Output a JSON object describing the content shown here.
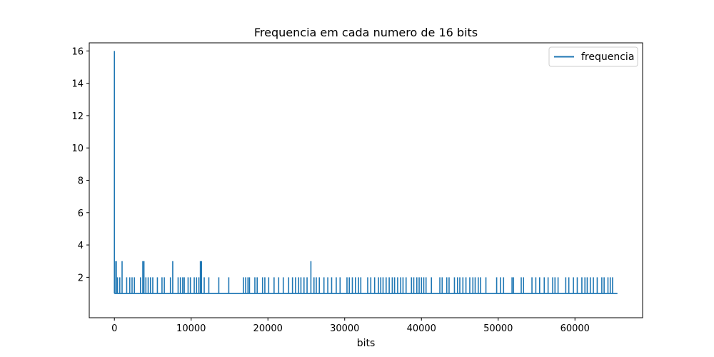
{
  "chart_data": {
    "type": "line",
    "title": "Frequencia em cada numero de 16 bits",
    "xlabel": "bits",
    "ylabel": "",
    "xlim": [
      -3277,
      68813
    ],
    "ylim": [
      -0.5,
      16.5
    ],
    "xticks": [
      0,
      10000,
      20000,
      30000,
      40000,
      50000,
      60000
    ],
    "yticks": [
      2,
      4,
      6,
      8,
      10,
      12,
      14,
      16
    ],
    "grid": false,
    "legend_position": "top-right",
    "baseline": 1,
    "x_max": 65535,
    "series": [
      {
        "name": "frequencia",
        "color": "#1f77b4",
        "spikes": [
          {
            "x": 0,
            "y": 16
          },
          {
            "x": 60,
            "y": 3
          },
          {
            "x": 250,
            "y": 3
          },
          {
            "x": 400,
            "y": 2
          },
          {
            "x": 700,
            "y": 2
          },
          {
            "x": 1000,
            "y": 3
          },
          {
            "x": 1600,
            "y": 2
          },
          {
            "x": 2000,
            "y": 2
          },
          {
            "x": 2300,
            "y": 2
          },
          {
            "x": 2600,
            "y": 2
          },
          {
            "x": 3400,
            "y": 2
          },
          {
            "x": 3700,
            "y": 3
          },
          {
            "x": 3850,
            "y": 3
          },
          {
            "x": 4100,
            "y": 2
          },
          {
            "x": 4400,
            "y": 2
          },
          {
            "x": 4700,
            "y": 2
          },
          {
            "x": 5000,
            "y": 2
          },
          {
            "x": 5600,
            "y": 2
          },
          {
            "x": 6200,
            "y": 2
          },
          {
            "x": 6500,
            "y": 2
          },
          {
            "x": 7300,
            "y": 2
          },
          {
            "x": 7600,
            "y": 3
          },
          {
            "x": 8300,
            "y": 2
          },
          {
            "x": 8600,
            "y": 2
          },
          {
            "x": 8900,
            "y": 2
          },
          {
            "x": 9100,
            "y": 2
          },
          {
            "x": 9600,
            "y": 2
          },
          {
            "x": 9900,
            "y": 2
          },
          {
            "x": 10400,
            "y": 2
          },
          {
            "x": 10700,
            "y": 2
          },
          {
            "x": 11000,
            "y": 2
          },
          {
            "x": 11200,
            "y": 3
          },
          {
            "x": 11350,
            "y": 3
          },
          {
            "x": 11700,
            "y": 2
          },
          {
            "x": 12300,
            "y": 2
          },
          {
            "x": 13600,
            "y": 2
          },
          {
            "x": 14900,
            "y": 2
          },
          {
            "x": 16800,
            "y": 2
          },
          {
            "x": 17100,
            "y": 2
          },
          {
            "x": 17400,
            "y": 2
          },
          {
            "x": 17600,
            "y": 2
          },
          {
            "x": 18300,
            "y": 2
          },
          {
            "x": 18600,
            "y": 2
          },
          {
            "x": 19300,
            "y": 2
          },
          {
            "x": 19600,
            "y": 2
          },
          {
            "x": 20100,
            "y": 2
          },
          {
            "x": 20800,
            "y": 2
          },
          {
            "x": 21400,
            "y": 2
          },
          {
            "x": 22000,
            "y": 2
          },
          {
            "x": 22700,
            "y": 2
          },
          {
            "x": 23200,
            "y": 2
          },
          {
            "x": 23600,
            "y": 2
          },
          {
            "x": 24000,
            "y": 2
          },
          {
            "x": 24300,
            "y": 2
          },
          {
            "x": 24700,
            "y": 2
          },
          {
            "x": 25100,
            "y": 2
          },
          {
            "x": 25600,
            "y": 3
          },
          {
            "x": 26000,
            "y": 2
          },
          {
            "x": 26300,
            "y": 2
          },
          {
            "x": 26700,
            "y": 2
          },
          {
            "x": 27300,
            "y": 2
          },
          {
            "x": 27800,
            "y": 2
          },
          {
            "x": 28300,
            "y": 2
          },
          {
            "x": 28900,
            "y": 2
          },
          {
            "x": 29400,
            "y": 2
          },
          {
            "x": 30300,
            "y": 2
          },
          {
            "x": 30600,
            "y": 2
          },
          {
            "x": 31000,
            "y": 2
          },
          {
            "x": 31400,
            "y": 2
          },
          {
            "x": 31800,
            "y": 2
          },
          {
            "x": 32100,
            "y": 2
          },
          {
            "x": 33000,
            "y": 2
          },
          {
            "x": 33400,
            "y": 2
          },
          {
            "x": 33900,
            "y": 2
          },
          {
            "x": 34400,
            "y": 2
          },
          {
            "x": 34700,
            "y": 2
          },
          {
            "x": 35000,
            "y": 2
          },
          {
            "x": 35400,
            "y": 2
          },
          {
            "x": 35800,
            "y": 2
          },
          {
            "x": 36200,
            "y": 2
          },
          {
            "x": 36500,
            "y": 2
          },
          {
            "x": 36900,
            "y": 2
          },
          {
            "x": 37300,
            "y": 2
          },
          {
            "x": 37600,
            "y": 2
          },
          {
            "x": 38000,
            "y": 2
          },
          {
            "x": 38700,
            "y": 2
          },
          {
            "x": 39000,
            "y": 2
          },
          {
            "x": 39400,
            "y": 2
          },
          {
            "x": 39700,
            "y": 2
          },
          {
            "x": 40000,
            "y": 2
          },
          {
            "x": 40300,
            "y": 2
          },
          {
            "x": 40600,
            "y": 2
          },
          {
            "x": 41300,
            "y": 2
          },
          {
            "x": 42400,
            "y": 2
          },
          {
            "x": 42700,
            "y": 2
          },
          {
            "x": 43300,
            "y": 2
          },
          {
            "x": 43600,
            "y": 2
          },
          {
            "x": 44300,
            "y": 2
          },
          {
            "x": 44700,
            "y": 2
          },
          {
            "x": 45000,
            "y": 2
          },
          {
            "x": 45400,
            "y": 2
          },
          {
            "x": 45800,
            "y": 2
          },
          {
            "x": 46300,
            "y": 2
          },
          {
            "x": 46700,
            "y": 2
          },
          {
            "x": 47000,
            "y": 2
          },
          {
            "x": 47400,
            "y": 2
          },
          {
            "x": 47700,
            "y": 2
          },
          {
            "x": 48400,
            "y": 2
          },
          {
            "x": 49800,
            "y": 2
          },
          {
            "x": 50300,
            "y": 2
          },
          {
            "x": 50700,
            "y": 2
          },
          {
            "x": 51800,
            "y": 2
          },
          {
            "x": 52000,
            "y": 2
          },
          {
            "x": 53000,
            "y": 2
          },
          {
            "x": 53300,
            "y": 2
          },
          {
            "x": 54400,
            "y": 2
          },
          {
            "x": 54900,
            "y": 2
          },
          {
            "x": 55400,
            "y": 2
          },
          {
            "x": 56000,
            "y": 2
          },
          {
            "x": 56500,
            "y": 2
          },
          {
            "x": 57100,
            "y": 2
          },
          {
            "x": 57400,
            "y": 2
          },
          {
            "x": 57800,
            "y": 2
          },
          {
            "x": 58800,
            "y": 2
          },
          {
            "x": 59200,
            "y": 2
          },
          {
            "x": 59800,
            "y": 2
          },
          {
            "x": 60300,
            "y": 2
          },
          {
            "x": 60900,
            "y": 2
          },
          {
            "x": 61300,
            "y": 2
          },
          {
            "x": 61600,
            "y": 2
          },
          {
            "x": 62000,
            "y": 2
          },
          {
            "x": 62400,
            "y": 2
          },
          {
            "x": 62900,
            "y": 2
          },
          {
            "x": 63500,
            "y": 2
          },
          {
            "x": 63800,
            "y": 2
          },
          {
            "x": 64300,
            "y": 2
          },
          {
            "x": 64600,
            "y": 2
          },
          {
            "x": 64900,
            "y": 2
          }
        ]
      }
    ]
  }
}
